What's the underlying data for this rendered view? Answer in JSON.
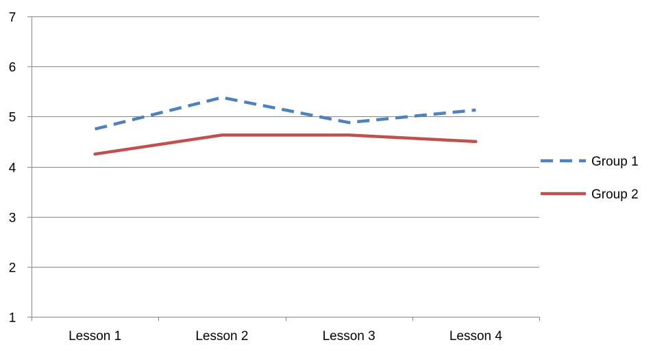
{
  "chart_data": {
    "type": "line",
    "categories": [
      "Lesson 1",
      "Lesson 2",
      "Lesson 3",
      "Lesson 4"
    ],
    "series": [
      {
        "name": "Group 1",
        "values": [
          4.75,
          5.38,
          4.88,
          5.13
        ],
        "color": "#4F81BD",
        "line_style": "dashed"
      },
      {
        "name": "Group 2",
        "values": [
          4.25,
          4.63,
          4.63,
          4.5
        ],
        "color": "#C0504D",
        "line_style": "solid"
      }
    ],
    "ylim": [
      1,
      7
    ],
    "yticks": [
      "1",
      "2",
      "3",
      "4",
      "5",
      "6",
      "7"
    ],
    "grid": true,
    "legend_position": "right",
    "title": "",
    "xlabel": "",
    "ylabel": ""
  }
}
